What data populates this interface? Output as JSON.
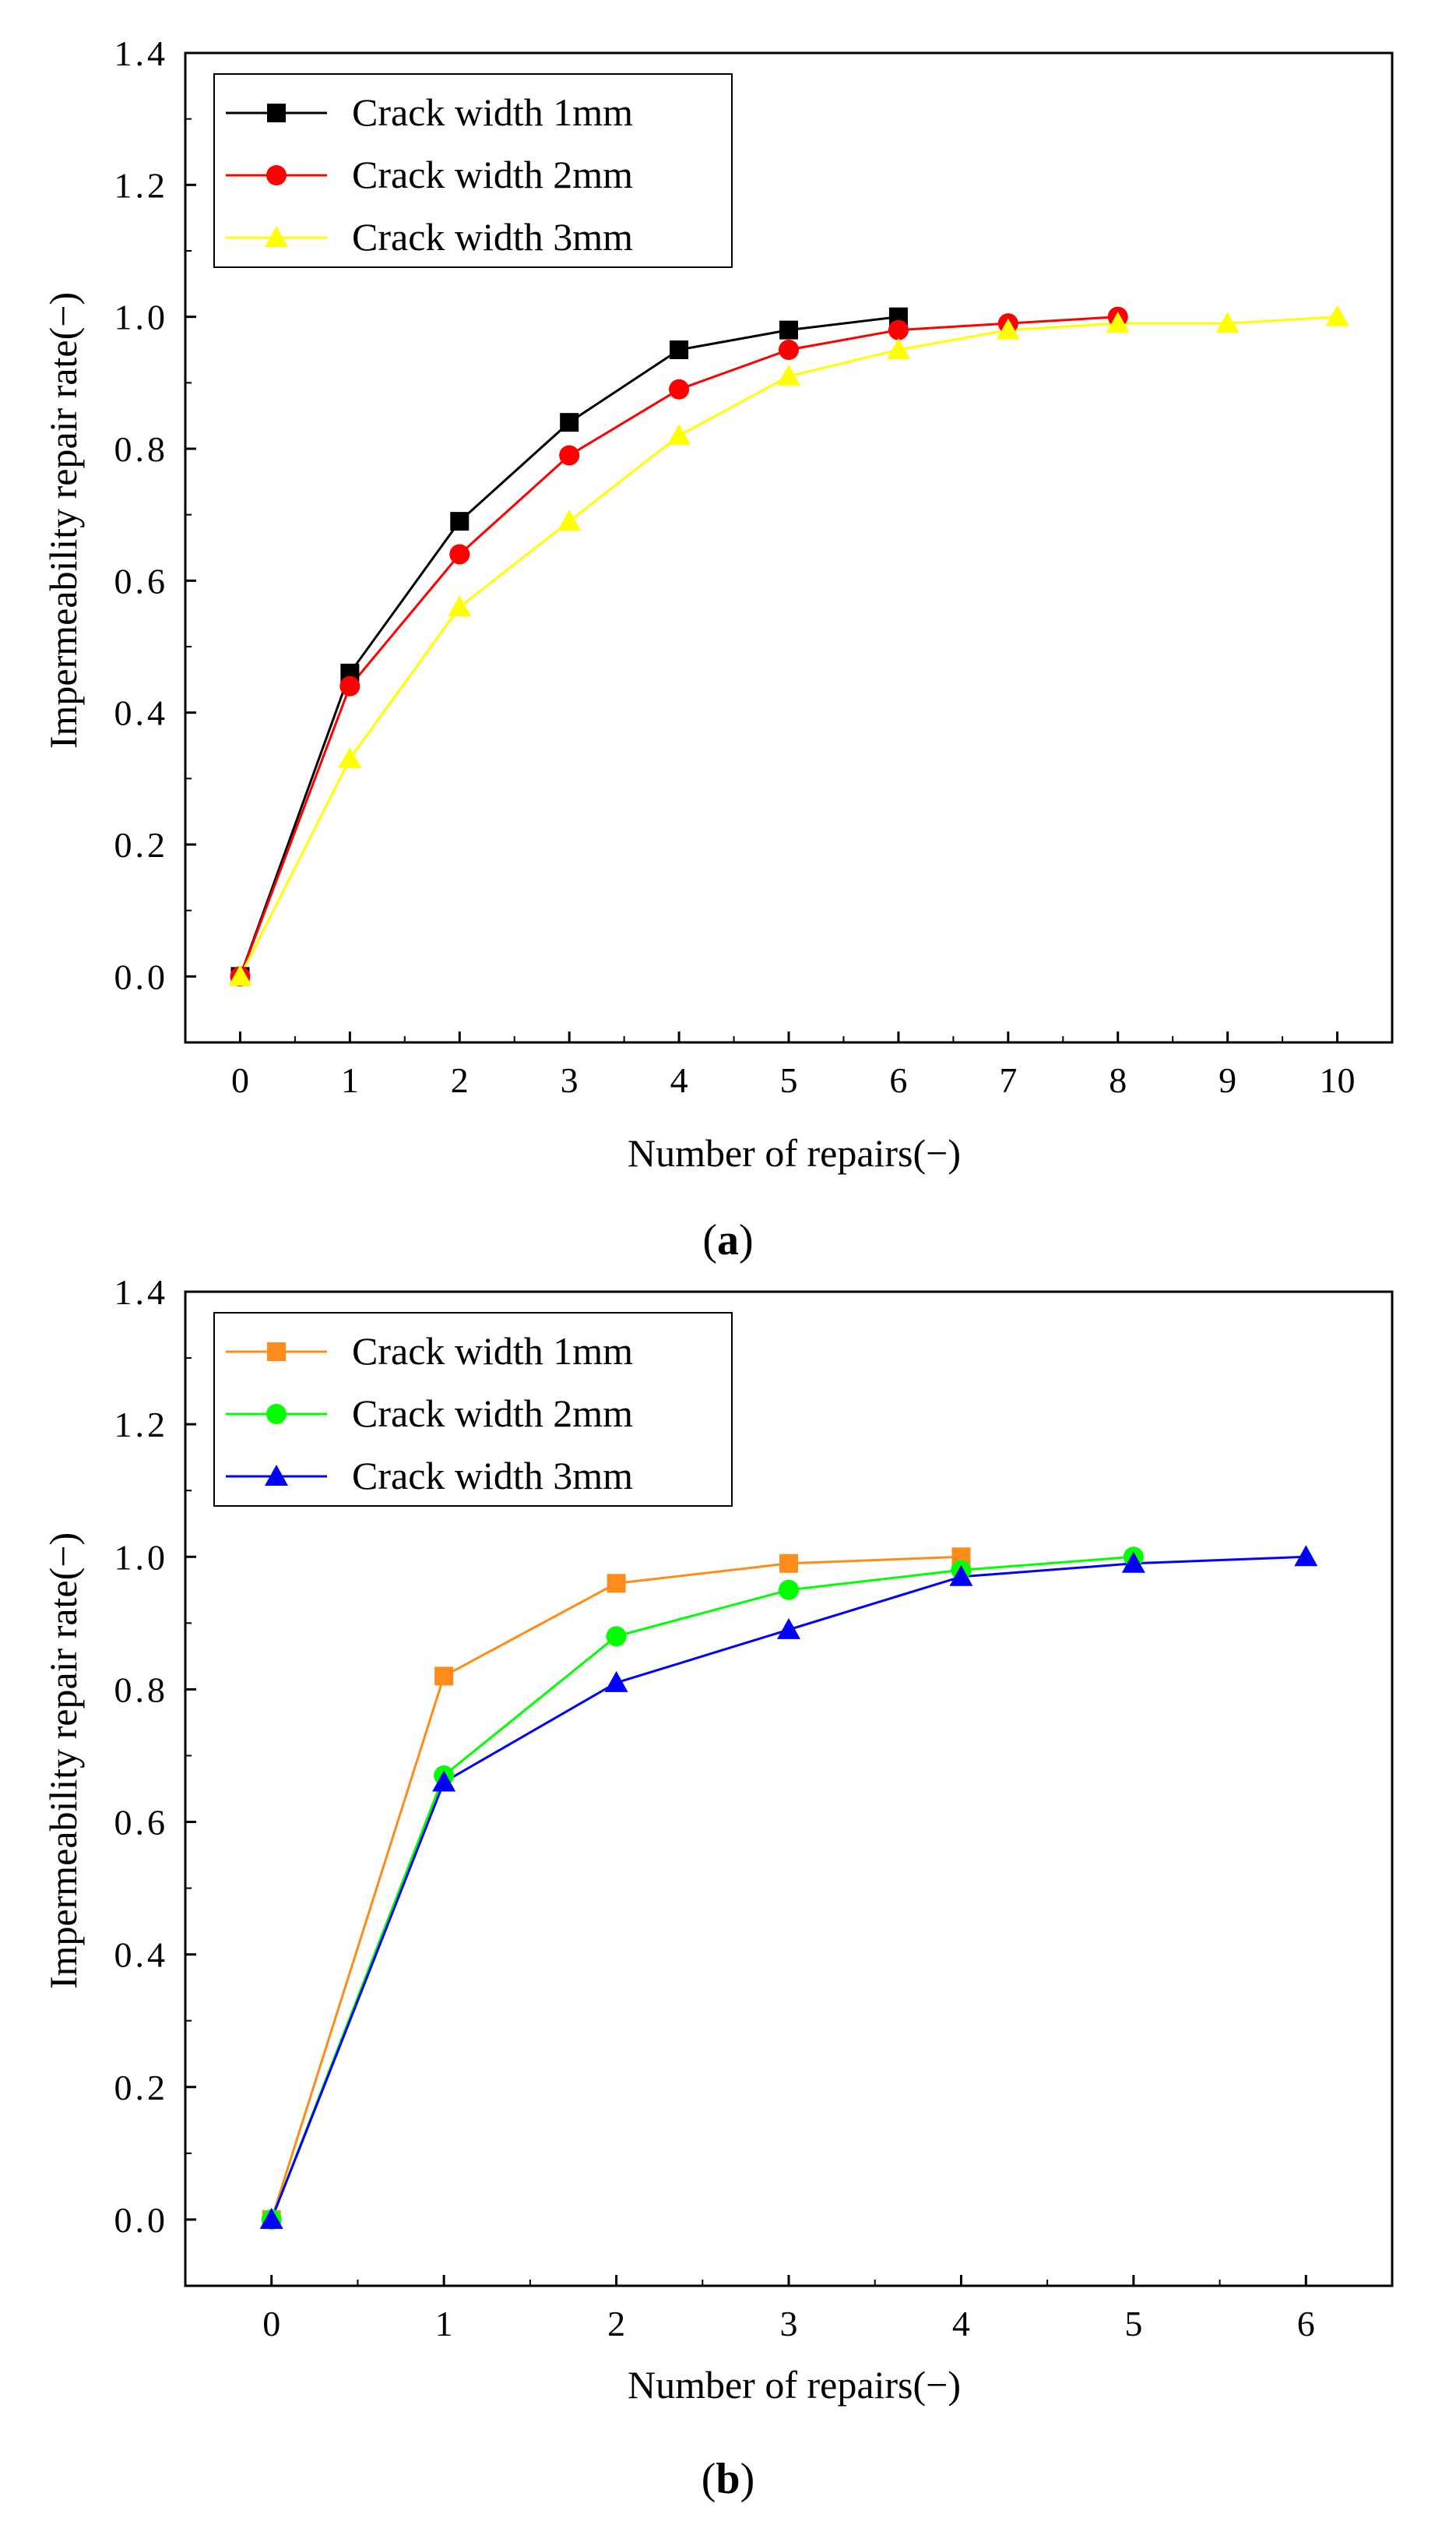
{
  "chart_data": [
    {
      "type": "line",
      "panel_label": "a",
      "title": "",
      "xlabel": "Number of repairs(−)",
      "ylabel": "Impermeability repair rate(−)",
      "xlim": [
        -0.5,
        10.5
      ],
      "ylim": [
        -0.1,
        1.4
      ],
      "xticks": [
        "0",
        "1",
        "2",
        "3",
        "4",
        "5",
        "6",
        "7",
        "8",
        "9",
        "10"
      ],
      "yticks": [
        "0.0",
        "0.2",
        "0.4",
        "0.6",
        "0.8",
        "1.0",
        "1.2",
        "1.4"
      ],
      "legend_position": "top-left",
      "grid": false,
      "series": [
        {
          "name": "Crack width 1mm",
          "color": "#000000",
          "marker": "square",
          "x": [
            0,
            1,
            2,
            3,
            4,
            5,
            6
          ],
          "y": [
            0.0,
            0.46,
            0.69,
            0.84,
            0.95,
            0.98,
            1.0
          ]
        },
        {
          "name": "Crack width 2mm",
          "color": "#ff0000",
          "marker": "circle",
          "x": [
            0,
            1,
            2,
            3,
            4,
            5,
            6,
            7,
            8
          ],
          "y": [
            0.0,
            0.44,
            0.64,
            0.79,
            0.89,
            0.95,
            0.98,
            0.99,
            1.0
          ]
        },
        {
          "name": "Crack width 3mm",
          "color": "#ffff00",
          "marker": "triangle",
          "x": [
            0,
            1,
            2,
            3,
            4,
            5,
            6,
            7,
            8,
            9,
            10
          ],
          "y": [
            0.0,
            0.33,
            0.56,
            0.69,
            0.82,
            0.91,
            0.95,
            0.98,
            0.99,
            0.99,
            1.0
          ]
        }
      ]
    },
    {
      "type": "line",
      "panel_label": "b",
      "title": "",
      "xlabel": "Number of repairs(−)",
      "ylabel": "Impermeability repair rate(−)",
      "xlim": [
        -0.5,
        6.5
      ],
      "ylim": [
        -0.1,
        1.4
      ],
      "xticks": [
        "0",
        "1",
        "2",
        "3",
        "4",
        "5",
        "6"
      ],
      "yticks": [
        "0.0",
        "0.2",
        "0.4",
        "0.6",
        "0.8",
        "1.0",
        "1.2",
        "1.4"
      ],
      "legend_position": "top-left",
      "grid": false,
      "series": [
        {
          "name": "Crack width 1mm",
          "color": "#ff8c1a",
          "marker": "square",
          "x": [
            0,
            1,
            2,
            3,
            4
          ],
          "y": [
            0.0,
            0.82,
            0.96,
            0.99,
            1.0
          ]
        },
        {
          "name": "Crack width 2mm",
          "color": "#00ff00",
          "marker": "circle",
          "x": [
            0,
            1,
            2,
            3,
            4,
            5
          ],
          "y": [
            0.0,
            0.67,
            0.88,
            0.95,
            0.98,
            1.0
          ]
        },
        {
          "name": "Crack width 3mm",
          "color": "#0000ff",
          "marker": "triangle",
          "x": [
            0,
            1,
            2,
            3,
            4,
            5,
            6
          ],
          "y": [
            0.0,
            0.66,
            0.81,
            0.89,
            0.97,
            0.99,
            1.0
          ]
        }
      ]
    }
  ]
}
